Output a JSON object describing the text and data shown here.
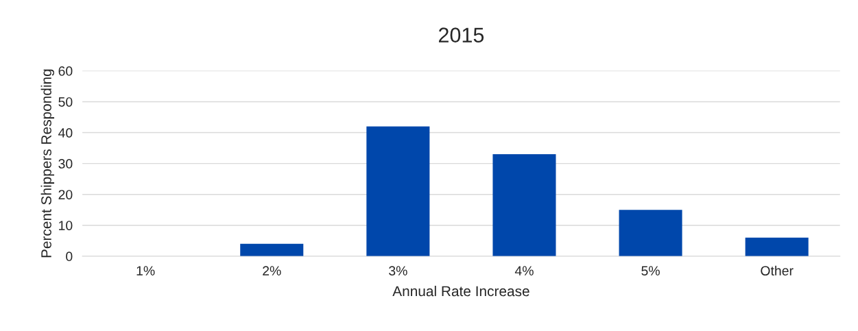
{
  "chart_data": {
    "type": "bar",
    "title": "2015",
    "xlabel": "Annual Rate Increase",
    "ylabel": "Percent Shippers Responding",
    "categories": [
      "1%",
      "2%",
      "3%",
      "4%",
      "5%",
      "Other"
    ],
    "values": [
      0,
      4,
      42,
      33,
      15,
      6
    ],
    "color": "#0047ab",
    "ylim": [
      0,
      60
    ],
    "yticks": [
      0,
      10,
      20,
      30,
      40,
      50,
      60
    ],
    "grid": "y"
  }
}
